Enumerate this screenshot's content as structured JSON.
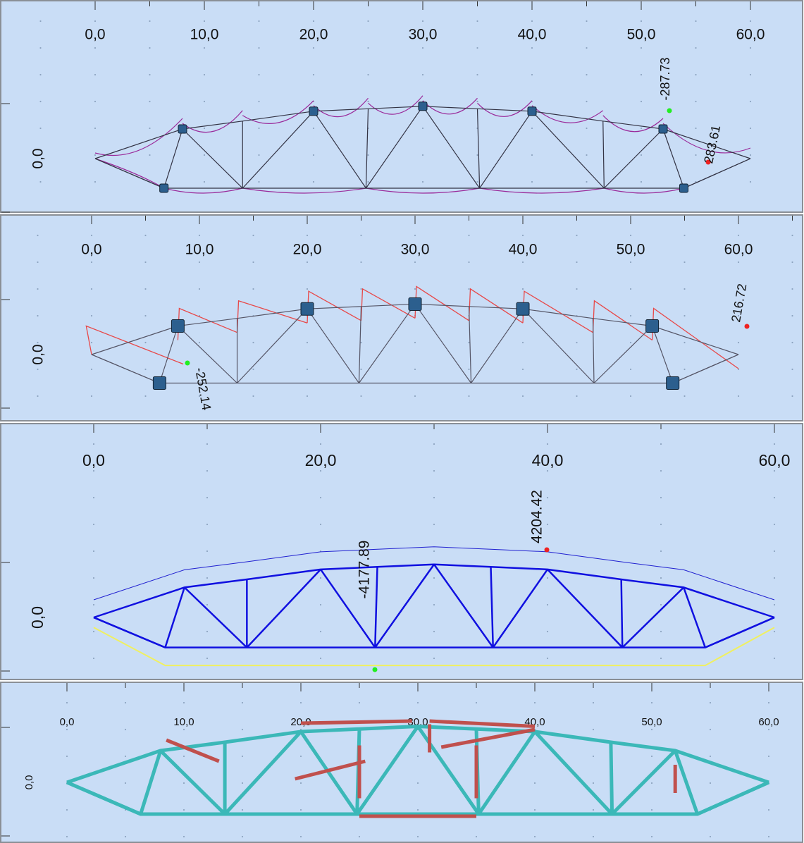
{
  "panels": [
    {
      "x_labels": [
        "0,0",
        "10,0",
        "20,0",
        "30,0",
        "40,0",
        "50,0",
        "60,0"
      ],
      "y_label": "0,0",
      "annotations": [
        "-287.73",
        "283.61"
      ]
    },
    {
      "x_labels": [
        "0,0",
        "10,0",
        "20,0",
        "30,0",
        "40,0",
        "50,0",
        "60,0"
      ],
      "y_label": "0,0",
      "annotations": [
        "-252.14",
        "216.72"
      ]
    },
    {
      "x_labels": [
        "0,0",
        "20,0",
        "40,0",
        "60,0"
      ],
      "y_label": "0,0",
      "annotations": [
        "4204.42",
        "-4177.89"
      ]
    },
    {
      "x_labels": [
        "0,0",
        "10,0",
        "20,0",
        "30,0",
        "40,0",
        "50,0",
        "60,0"
      ],
      "y_label": "0,0",
      "annotations": []
    }
  ]
}
